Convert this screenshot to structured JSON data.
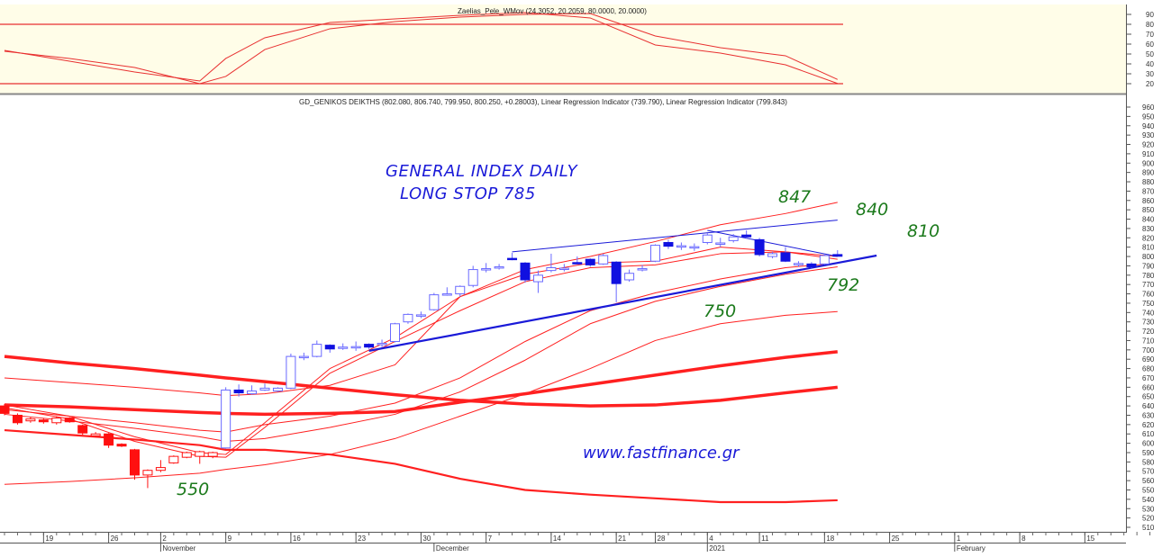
{
  "oscillator": {
    "header": "Zaelias_Pele_WMov (24.3052, 20.2059, 80.0000, 20.0000)",
    "levels": [
      80,
      20
    ],
    "axis_ticks": [
      90,
      80,
      70,
      60,
      50,
      40,
      30,
      20
    ],
    "bg_color": "#fffde8",
    "line_color": "#e83030"
  },
  "main": {
    "header": "GD_GENIKOS DEIKTHS (802.080, 806.740, 799.950, 800.250, +0.28003), Linear Regression Indicator (739.790), Linear Regression Indicator (799.843)",
    "annotations": {
      "title_line1": "GENERAL INDEX DAILY",
      "title_line2": "LONG STOP 785",
      "url": "www.fastfinance.gr",
      "levels": [
        "847",
        "840",
        "810",
        "792",
        "750",
        "550"
      ]
    }
  },
  "chart_data": {
    "type": "candlestick",
    "ylim": [
      510,
      960
    ],
    "ytick_step": 10,
    "grid": false,
    "colors": {
      "red": "#ff1010",
      "blue": "#1010e0",
      "blue_outline": "#6a6aff",
      "ma": "#ff2020",
      "trend": "#1a1ad8"
    },
    "x_ticks": [
      {
        "label": "19",
        "date": "2020-10-19"
      },
      {
        "label": "26",
        "date": "2020-10-26"
      },
      {
        "label": "2",
        "date": "2020-11-02"
      },
      {
        "label": "9",
        "date": "2020-11-09"
      },
      {
        "label": "16",
        "date": "2020-11-16"
      },
      {
        "label": "23",
        "date": "2020-11-23"
      },
      {
        "label": "30",
        "date": "2020-11-30"
      },
      {
        "label": "7",
        "date": "2020-12-07"
      },
      {
        "label": "14",
        "date": "2020-12-14"
      },
      {
        "label": "21",
        "date": "2020-12-21"
      },
      {
        "label": "28",
        "date": "2020-12-28"
      },
      {
        "label": "4",
        "date": "2021-01-04"
      },
      {
        "label": "11",
        "date": "2021-01-11"
      },
      {
        "label": "18",
        "date": "2021-01-18"
      },
      {
        "label": "25",
        "date": "2021-01-25"
      },
      {
        "label": "1",
        "date": "2021-02-01"
      },
      {
        "label": "8",
        "date": "2021-02-08"
      },
      {
        "label": "15",
        "date": "2021-02-15"
      }
    ],
    "month_labels": [
      {
        "label": "November",
        "date": "2020-11-02"
      },
      {
        "label": "December",
        "date": "2020-12-01"
      },
      {
        "label": "2021",
        "date": "2021-01-04"
      },
      {
        "label": "February",
        "date": "2021-02-01"
      }
    ],
    "candles": [
      {
        "d": "2020-10-14",
        "o": 640,
        "h": 642,
        "l": 630,
        "c": 632,
        "color": "red"
      },
      {
        "d": "2020-10-15",
        "o": 630,
        "h": 632,
        "l": 620,
        "c": 622,
        "color": "red"
      },
      {
        "d": "2020-10-16",
        "o": 624,
        "h": 628,
        "l": 622,
        "c": 626,
        "color": "red"
      },
      {
        "d": "2020-10-19",
        "o": 625,
        "h": 627,
        "l": 621,
        "c": 623,
        "color": "red"
      },
      {
        "d": "2020-10-20",
        "o": 622,
        "h": 629,
        "l": 620,
        "c": 627,
        "color": "red"
      },
      {
        "d": "2020-10-21",
        "o": 627,
        "h": 628,
        "l": 622,
        "c": 623,
        "color": "red"
      },
      {
        "d": "2020-10-22",
        "o": 619,
        "h": 620,
        "l": 609,
        "c": 611,
        "color": "red"
      },
      {
        "d": "2020-10-23",
        "o": 608,
        "h": 612,
        "l": 607,
        "c": 610,
        "color": "red"
      },
      {
        "d": "2020-10-26",
        "o": 610,
        "h": 611,
        "l": 595,
        "c": 598,
        "color": "red"
      },
      {
        "d": "2020-10-27",
        "o": 599,
        "h": 600,
        "l": 596,
        "c": 597,
        "color": "red"
      },
      {
        "d": "2020-10-29",
        "o": 593,
        "h": 594,
        "l": 561,
        "c": 566,
        "color": "red"
      },
      {
        "d": "2020-10-30",
        "o": 566,
        "h": 572,
        "l": 552,
        "c": 571,
        "color": "red"
      },
      {
        "d": "2020-11-02",
        "o": 571,
        "h": 582,
        "l": 569,
        "c": 574,
        "color": "red"
      },
      {
        "d": "2020-11-03",
        "o": 579,
        "h": 587,
        "l": 578,
        "c": 586,
        "color": "red"
      },
      {
        "d": "2020-11-04",
        "o": 585,
        "h": 591,
        "l": 584,
        "c": 590,
        "color": "red"
      },
      {
        "d": "2020-11-05",
        "o": 586,
        "h": 592,
        "l": 578,
        "c": 591,
        "color": "red"
      },
      {
        "d": "2020-11-06",
        "o": 586,
        "h": 591,
        "l": 584,
        "c": 590,
        "color": "red"
      },
      {
        "d": "2020-11-09",
        "o": 595,
        "h": 660,
        "l": 594,
        "c": 657,
        "color": "blue"
      },
      {
        "d": "2020-11-10",
        "o": 657,
        "h": 663,
        "l": 650,
        "c": 654,
        "color": "blue"
      },
      {
        "d": "2020-11-11",
        "o": 653,
        "h": 662,
        "l": 652,
        "c": 656,
        "color": "blue"
      },
      {
        "d": "2020-11-12",
        "o": 657,
        "h": 664,
        "l": 656,
        "c": 659,
        "color": "blue"
      },
      {
        "d": "2020-11-13",
        "o": 656,
        "h": 660,
        "l": 655,
        "c": 659,
        "color": "blue"
      },
      {
        "d": "2020-11-16",
        "o": 659,
        "h": 696,
        "l": 658,
        "c": 693,
        "color": "blue"
      },
      {
        "d": "2020-11-17",
        "o": 692,
        "h": 697,
        "l": 689,
        "c": 693,
        "color": "blue"
      },
      {
        "d": "2020-11-18",
        "o": 693,
        "h": 710,
        "l": 692,
        "c": 706,
        "color": "blue"
      },
      {
        "d": "2020-11-19",
        "o": 705,
        "h": 706,
        "l": 697,
        "c": 701,
        "color": "blue"
      },
      {
        "d": "2020-11-20",
        "o": 702,
        "h": 707,
        "l": 700,
        "c": 703,
        "color": "blue"
      },
      {
        "d": "2020-11-23",
        "o": 703,
        "h": 709,
        "l": 699,
        "c": 703.5,
        "color": "blue"
      },
      {
        "d": "2020-11-24",
        "o": 706,
        "h": 707,
        "l": 701,
        "c": 703,
        "color": "blue"
      },
      {
        "d": "2020-11-25",
        "o": 706.5,
        "h": 711,
        "l": 703,
        "c": 707,
        "color": "blue"
      },
      {
        "d": "2020-11-26",
        "o": 709,
        "h": 729,
        "l": 708,
        "c": 728,
        "color": "blue"
      },
      {
        "d": "2020-11-27",
        "o": 730,
        "h": 739,
        "l": 728,
        "c": 738,
        "color": "blue"
      },
      {
        "d": "2020-11-30",
        "o": 737,
        "h": 741,
        "l": 734,
        "c": 737.5,
        "color": "blue"
      },
      {
        "d": "2020-12-01",
        "o": 743,
        "h": 761,
        "l": 742,
        "c": 759,
        "color": "blue"
      },
      {
        "d": "2020-12-02",
        "o": 759.5,
        "h": 767,
        "l": 758,
        "c": 760,
        "color": "blue"
      },
      {
        "d": "2020-12-03",
        "o": 760,
        "h": 769,
        "l": 757,
        "c": 768,
        "color": "blue"
      },
      {
        "d": "2020-12-04",
        "o": 769,
        "h": 790,
        "l": 767,
        "c": 786,
        "color": "blue"
      },
      {
        "d": "2020-12-07",
        "o": 786.5,
        "h": 793,
        "l": 783,
        "c": 787,
        "color": "blue"
      },
      {
        "d": "2020-12-08",
        "o": 788.5,
        "h": 792,
        "l": 786,
        "c": 789,
        "color": "blue"
      },
      {
        "d": "2020-12-09",
        "o": 798,
        "h": 804,
        "l": 796,
        "c": 797,
        "color": "blue"
      },
      {
        "d": "2020-12-10",
        "o": 793,
        "h": 794,
        "l": 772,
        "c": 775,
        "color": "blue"
      },
      {
        "d": "2020-12-11",
        "o": 773,
        "h": 785,
        "l": 761,
        "c": 780,
        "color": "blue"
      },
      {
        "d": "2020-12-14",
        "o": 785,
        "h": 803,
        "l": 783,
        "c": 788,
        "color": "blue"
      },
      {
        "d": "2020-12-15",
        "o": 787,
        "h": 792,
        "l": 784,
        "c": 787.5,
        "color": "blue"
      },
      {
        "d": "2020-12-16",
        "o": 793.5,
        "h": 800,
        "l": 792,
        "c": 793,
        "color": "blue"
      },
      {
        "d": "2020-12-17",
        "o": 797,
        "h": 798,
        "l": 789,
        "c": 791,
        "color": "blue"
      },
      {
        "d": "2020-12-18",
        "o": 792,
        "h": 803,
        "l": 791,
        "c": 801,
        "color": "blue"
      },
      {
        "d": "2020-12-21",
        "o": 794,
        "h": 795,
        "l": 751,
        "c": 771,
        "color": "blue"
      },
      {
        "d": "2020-12-22",
        "o": 775,
        "h": 786,
        "l": 773,
        "c": 782,
        "color": "blue"
      },
      {
        "d": "2020-12-23",
        "o": 786.5,
        "h": 791,
        "l": 784,
        "c": 787,
        "color": "blue"
      },
      {
        "d": "2020-12-28",
        "o": 795,
        "h": 813,
        "l": 794,
        "c": 812,
        "color": "blue"
      },
      {
        "d": "2020-12-29",
        "o": 815,
        "h": 818,
        "l": 808,
        "c": 811,
        "color": "blue"
      },
      {
        "d": "2020-12-30",
        "o": 811,
        "h": 815,
        "l": 807,
        "c": 811.5,
        "color": "blue"
      },
      {
        "d": "2020-12-31",
        "o": 810,
        "h": 814,
        "l": 806,
        "c": 810.5,
        "color": "blue"
      },
      {
        "d": "2021-01-04",
        "o": 815,
        "h": 825,
        "l": 813,
        "c": 823,
        "color": "blue"
      },
      {
        "d": "2021-01-05",
        "o": 814,
        "h": 820,
        "l": 810,
        "c": 814.5,
        "color": "blue"
      },
      {
        "d": "2021-01-07",
        "o": 817,
        "h": 824,
        "l": 815,
        "c": 821,
        "color": "blue"
      },
      {
        "d": "2021-01-08",
        "o": 823,
        "h": 828,
        "l": 819,
        "c": 821,
        "color": "blue"
      },
      {
        "d": "2021-01-11",
        "o": 818,
        "h": 820,
        "l": 800,
        "c": 802,
        "color": "blue"
      },
      {
        "d": "2021-01-12",
        "o": 800,
        "h": 805,
        "l": 798,
        "c": 803,
        "color": "blue"
      },
      {
        "d": "2021-01-13",
        "o": 804,
        "h": 810,
        "l": 794,
        "c": 795,
        "color": "blue"
      },
      {
        "d": "2021-01-14",
        "o": 792,
        "h": 795,
        "l": 789,
        "c": 792.5,
        "color": "blue"
      },
      {
        "d": "2021-01-15",
        "o": 792,
        "h": 794,
        "l": 788,
        "c": 789,
        "color": "blue"
      },
      {
        "d": "2021-01-18",
        "o": 792,
        "h": 803,
        "l": 791,
        "c": 801,
        "color": "blue"
      },
      {
        "d": "2021-01-19",
        "o": 802.08,
        "h": 806.74,
        "l": 799.95,
        "c": 800.25,
        "color": "blue"
      }
    ],
    "line_dates": [
      "2020-10-14",
      "2020-10-21",
      "2020-10-29",
      "2020-11-05",
      "2020-11-09",
      "2020-11-12",
      "2020-11-19",
      "2020-11-26",
      "2020-12-03",
      "2020-12-10",
      "2020-12-17",
      "2020-12-28",
      "2021-01-05",
      "2021-01-13",
      "2021-01-19"
    ],
    "overlays": [
      {
        "style": "thick",
        "values": [
          693,
          686,
          680,
          673,
          670,
          666,
          659,
          652,
          646,
          642,
          640,
          641,
          646,
          654,
          660
        ]
      },
      {
        "style": "thick",
        "values": [
          641,
          639,
          636,
          633,
          632,
          631,
          632,
          634,
          644,
          653,
          663,
          673,
          683,
          692,
          698
        ]
      },
      {
        "style": "medium",
        "values": [
          614,
          609,
          604,
          598,
          593,
          593,
          588,
          578,
          562,
          550,
          545,
          541,
          537,
          537,
          539
        ]
      },
      {
        "style": "thin",
        "values": [
          556,
          559,
          563,
          568,
          572,
          577,
          588,
          605,
          629,
          653,
          680,
          710,
          728,
          737,
          741
        ]
      },
      {
        "style": "thin",
        "values": [
          670,
          665,
          660,
          654,
          651,
          653,
          662,
          684,
          757,
          786,
          800,
          816,
          834,
          846,
          858
        ]
      },
      {
        "style": "thin",
        "values": [
          641,
          629,
          607,
          590,
          588,
          622,
          680,
          713,
          757,
          781,
          793,
          795,
          810,
          805,
          800
        ]
      },
      {
        "style": "thin",
        "values": [
          638,
          626,
          602,
          586,
          585,
          617,
          675,
          709,
          742,
          773,
          788,
          791,
          803,
          805,
          797
        ]
      },
      {
        "style": "thin",
        "values": [
          636,
          629,
          622,
          614,
          612,
          620,
          629,
          643,
          670,
          709,
          742,
          761,
          776,
          788,
          793
        ]
      },
      {
        "style": "thin",
        "values": [
          631,
          624,
          616,
          607,
          602,
          605,
          617,
          631,
          655,
          689,
          728,
          752,
          768,
          781,
          789
        ]
      }
    ],
    "trendlines": [
      {
        "style": "thin",
        "from": {
          "d": "2020-12-09",
          "v": 805
        },
        "to": {
          "d": "2021-01-19",
          "v": 839
        }
      },
      {
        "style": "thin",
        "from": {
          "d": "2021-01-04",
          "v": 828
        },
        "to": {
          "d": "2021-01-19",
          "v": 800
        }
      },
      {
        "style": "thick",
        "from": {
          "d": "2020-11-24",
          "v": 699
        },
        "to": {
          "d": "2021-01-22",
          "v": 801
        }
      }
    ],
    "oscillator_series": [
      {
        "values": [
          53.6,
          42.7,
          31.8,
          22.7,
          45.5,
          66.4,
          81.8,
          85.5,
          89.1,
          91.8,
          86.4,
          59.1,
          50.9,
          39.1,
          20.2
        ]
      },
      {
        "values": [
          52.7,
          45.5,
          36.4,
          20.0,
          27.3,
          54.5,
          75.5,
          82.7,
          87.3,
          90.0,
          90.9,
          68.2,
          56.4,
          48.2,
          24.3
        ]
      }
    ]
  }
}
